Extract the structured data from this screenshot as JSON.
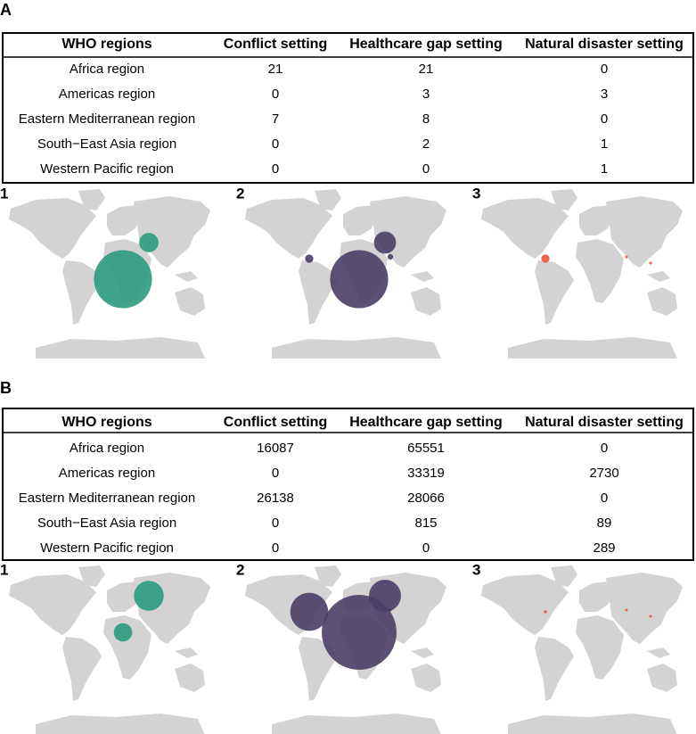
{
  "panels": [
    {
      "label": "A",
      "table": {
        "header": [
          "WHO regions",
          "Conflict setting",
          "Healthcare gap setting",
          "Natural disaster setting"
        ],
        "rows": [
          [
            "Africa region",
            21,
            21,
            0
          ],
          [
            "Americas region",
            0,
            3,
            3
          ],
          [
            "Eastern Mediterranean region",
            7,
            8,
            0
          ],
          [
            "South−East Asia region",
            0,
            2,
            1
          ],
          [
            "Western Pacific region",
            0,
            0,
            1
          ]
        ]
      },
      "maps": [
        "1",
        "2",
        "3"
      ]
    },
    {
      "label": "B",
      "table": {
        "header": [
          "WHO regions",
          "Conflict setting",
          "Healthcare gap setting",
          "Natural disaster setting"
        ],
        "rows": [
          [
            "Africa region",
            16087,
            65551,
            0
          ],
          [
            "Americas region",
            0,
            33319,
            2730
          ],
          [
            "Eastern Mediterranean region",
            26138,
            28066,
            0
          ],
          [
            "South−East Asia region",
            0,
            815,
            89
          ],
          [
            "Western Pacific region",
            0,
            0,
            289
          ]
        ]
      },
      "maps": [
        "1",
        "2",
        "3"
      ]
    }
  ],
  "map_colors": [
    "#2a9a7c",
    "#4a3e66",
    "#e8553a"
  ]
}
